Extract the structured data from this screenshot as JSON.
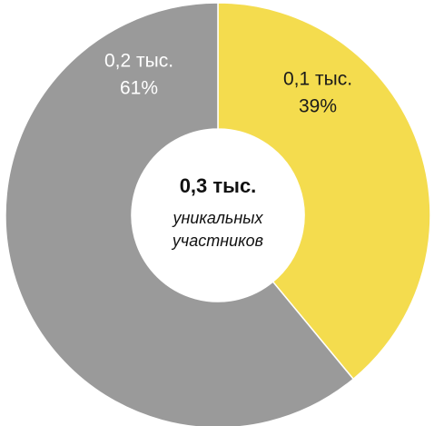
{
  "chart_data": {
    "type": "donut",
    "values": [
      39,
      61
    ],
    "value_labels": [
      "39%",
      "61%"
    ],
    "amount_labels": [
      "0,1 тыс.",
      "0,2 тыс."
    ],
    "colors": [
      "#f4dc4e",
      "#9a9a9a"
    ],
    "label_colors": [
      "#1a1a1a",
      "#ffffff"
    ],
    "center_title": "0,3 тыс.",
    "center_subtitle": [
      "уникальных",
      "участников"
    ]
  }
}
